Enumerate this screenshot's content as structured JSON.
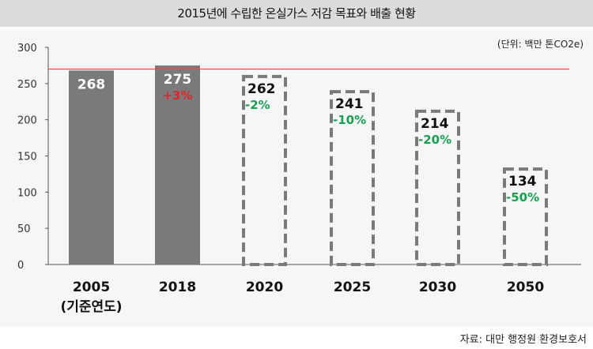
{
  "title": "2015년에 수립한 온실가스 저감 목표와 배출 현황",
  "unit_note": "(단위: 백만 톤CO2e)",
  "source": "자료: 대만 행정원 환경보호서",
  "colors": {
    "actual_bar": "#7a7a7a",
    "target_outline": "#7a7a7a",
    "reference_line": "#e74c4c",
    "increase_text": "#e0242a",
    "decrease_text": "#1a9e52",
    "panel_bg": "#f6f6f6"
  },
  "chart_data": {
    "type": "bar",
    "categories": [
      "2005",
      "2018",
      "2020",
      "2025",
      "2030",
      "2050"
    ],
    "category_sublabels": [
      "(기준연도)",
      "",
      "",
      "",
      "",
      ""
    ],
    "values": [
      268,
      275,
      262,
      241,
      214,
      134
    ],
    "value_labels": [
      "268",
      "275",
      "262",
      "241",
      "214",
      "134"
    ],
    "change_labels": [
      "",
      "+3%",
      "-2%",
      "-10%",
      "-20%",
      "-50%"
    ],
    "bar_styles": [
      "solid",
      "solid",
      "dashed",
      "dashed",
      "dashed",
      "dashed"
    ],
    "ylim": [
      0,
      300
    ],
    "yticks": [
      0,
      50,
      100,
      150,
      200,
      250,
      300
    ],
    "reference_line": 270,
    "xlabel": "",
    "ylabel": "",
    "grid": false
  }
}
